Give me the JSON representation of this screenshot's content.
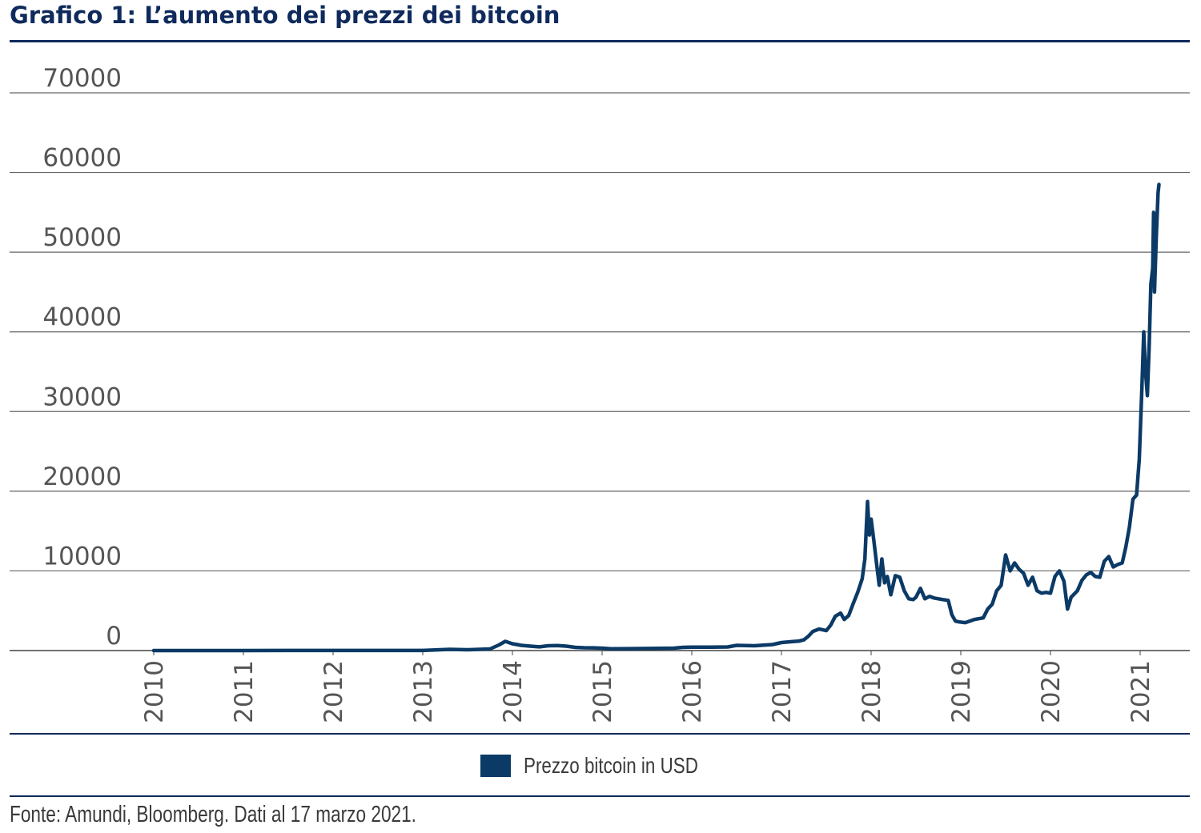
{
  "title": "Grafico 1: L’aumento dei prezzi dei bitcoin",
  "source": "Fonte: Amundi, Bloomberg. Dati al 17 marzo 2021.",
  "colors": {
    "title": "#0f2a5c",
    "line": "#0b3a66",
    "grid": "#666666",
    "rule": "#0f2a5c"
  },
  "chart_data": {
    "type": "line",
    "title": "Grafico 1: L’aumento dei prezzi dei bitcoin",
    "xlabel": "",
    "ylabel": "",
    "ylim": [
      0,
      70000
    ],
    "yticks": [
      "0",
      "10000",
      "20000",
      "30000",
      "40000",
      "50000",
      "60000",
      "70000"
    ],
    "xticks": [
      "2010",
      "2011",
      "2012",
      "2013",
      "2014",
      "2015",
      "2016",
      "2017",
      "2018",
      "2019",
      "2020",
      "2021"
    ],
    "grid": true,
    "legend_position": "bottom-center",
    "series": [
      {
        "name": "Prezzo bitcoin in USD",
        "color": "#0b3a66",
        "points": [
          [
            2010.0,
            0
          ],
          [
            2011.0,
            1
          ],
          [
            2011.5,
            15
          ],
          [
            2012.0,
            6
          ],
          [
            2012.5,
            8
          ],
          [
            2013.0,
            13
          ],
          [
            2013.3,
            150
          ],
          [
            2013.5,
            100
          ],
          [
            2013.75,
            200
          ],
          [
            2013.85,
            700
          ],
          [
            2013.92,
            1150
          ],
          [
            2014.0,
            850
          ],
          [
            2014.1,
            650
          ],
          [
            2014.2,
            550
          ],
          [
            2014.3,
            460
          ],
          [
            2014.4,
            600
          ],
          [
            2014.5,
            630
          ],
          [
            2014.6,
            550
          ],
          [
            2014.7,
            400
          ],
          [
            2014.8,
            350
          ],
          [
            2014.9,
            340
          ],
          [
            2015.0,
            300
          ],
          [
            2015.1,
            220
          ],
          [
            2015.3,
            240
          ],
          [
            2015.5,
            260
          ],
          [
            2015.6,
            280
          ],
          [
            2015.8,
            300
          ],
          [
            2015.9,
            400
          ],
          [
            2016.0,
            430
          ],
          [
            2016.2,
            420
          ],
          [
            2016.4,
            450
          ],
          [
            2016.5,
            650
          ],
          [
            2016.7,
            600
          ],
          [
            2016.9,
            750
          ],
          [
            2017.0,
            1000
          ],
          [
            2017.1,
            1100
          ],
          [
            2017.2,
            1200
          ],
          [
            2017.25,
            1350
          ],
          [
            2017.3,
            1800
          ],
          [
            2017.35,
            2400
          ],
          [
            2017.42,
            2700
          ],
          [
            2017.5,
            2500
          ],
          [
            2017.55,
            3200
          ],
          [
            2017.6,
            4300
          ],
          [
            2017.66,
            4700
          ],
          [
            2017.7,
            3900
          ],
          [
            2017.75,
            4400
          ],
          [
            2017.8,
            5900
          ],
          [
            2017.85,
            7300
          ],
          [
            2017.9,
            9000
          ],
          [
            2017.93,
            11500
          ],
          [
            2017.96,
            18700
          ],
          [
            2017.98,
            14500
          ],
          [
            2018.0,
            16500
          ],
          [
            2018.03,
            13800
          ],
          [
            2018.06,
            11000
          ],
          [
            2018.09,
            8200
          ],
          [
            2018.12,
            11500
          ],
          [
            2018.15,
            8500
          ],
          [
            2018.18,
            9300
          ],
          [
            2018.22,
            7000
          ],
          [
            2018.27,
            9400
          ],
          [
            2018.32,
            9200
          ],
          [
            2018.37,
            7500
          ],
          [
            2018.42,
            6500
          ],
          [
            2018.47,
            6400
          ],
          [
            2018.5,
            6700
          ],
          [
            2018.55,
            7800
          ],
          [
            2018.6,
            6500
          ],
          [
            2018.65,
            6800
          ],
          [
            2018.7,
            6600
          ],
          [
            2018.8,
            6400
          ],
          [
            2018.86,
            6300
          ],
          [
            2018.9,
            4500
          ],
          [
            2018.94,
            3700
          ],
          [
            2018.98,
            3600
          ],
          [
            2019.05,
            3500
          ],
          [
            2019.15,
            3900
          ],
          [
            2019.25,
            4100
          ],
          [
            2019.3,
            5200
          ],
          [
            2019.35,
            5800
          ],
          [
            2019.4,
            7500
          ],
          [
            2019.45,
            8200
          ],
          [
            2019.5,
            12000
          ],
          [
            2019.55,
            10000
          ],
          [
            2019.6,
            11000
          ],
          [
            2019.65,
            10200
          ],
          [
            2019.7,
            9700
          ],
          [
            2019.75,
            8200
          ],
          [
            2019.8,
            9200
          ],
          [
            2019.85,
            7500
          ],
          [
            2019.9,
            7200
          ],
          [
            2019.95,
            7300
          ],
          [
            2020.0,
            7200
          ],
          [
            2020.05,
            9300
          ],
          [
            2020.1,
            10000
          ],
          [
            2020.15,
            8700
          ],
          [
            2020.19,
            5200
          ],
          [
            2020.23,
            6700
          ],
          [
            2020.3,
            7500
          ],
          [
            2020.35,
            8800
          ],
          [
            2020.4,
            9500
          ],
          [
            2020.45,
            9800
          ],
          [
            2020.5,
            9300
          ],
          [
            2020.55,
            9200
          ],
          [
            2020.6,
            11200
          ],
          [
            2020.65,
            11800
          ],
          [
            2020.7,
            10500
          ],
          [
            2020.75,
            10800
          ],
          [
            2020.8,
            11000
          ],
          [
            2020.84,
            13000
          ],
          [
            2020.88,
            15500
          ],
          [
            2020.92,
            19000
          ],
          [
            2020.96,
            19500
          ],
          [
            2020.99,
            24000
          ],
          [
            2021.02,
            33000
          ],
          [
            2021.04,
            40000
          ],
          [
            2021.06,
            35000
          ],
          [
            2021.08,
            32000
          ],
          [
            2021.1,
            38000
          ],
          [
            2021.12,
            46000
          ],
          [
            2021.14,
            48000
          ],
          [
            2021.15,
            55000
          ],
          [
            2021.16,
            45000
          ],
          [
            2021.18,
            52000
          ],
          [
            2021.2,
            57500
          ],
          [
            2021.21,
            58500
          ]
        ]
      }
    ]
  }
}
